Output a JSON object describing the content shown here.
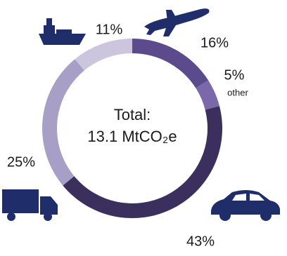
{
  "chart_data": {
    "type": "pie",
    "center_text": [
      "Total:",
      "13.1 MtCO₂e"
    ],
    "categories": [
      null,
      "other",
      null,
      null,
      null
    ],
    "values": [
      16,
      5,
      43,
      25,
      11
    ],
    "value_labels": [
      "16%",
      "5%",
      "43%",
      "25%",
      "11%"
    ],
    "colors": [
      "#5b4b8c",
      "#7b68ab",
      "#3b2f5e",
      "#a89fc7",
      "#cbc5de"
    ],
    "donut": true
  }
}
